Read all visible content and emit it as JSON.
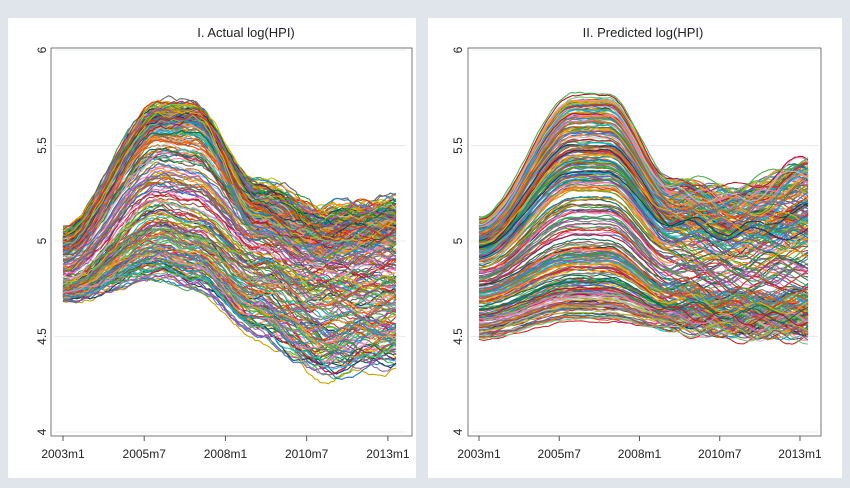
{
  "figure": {
    "background_color": "#dfe5ea"
  },
  "chart_data": [
    {
      "type": "line",
      "title": "I. Actual log(HPI)",
      "xlabel": "",
      "ylabel": "",
      "x_ticks": [
        "2003m1",
        "2005m7",
        "2008m1",
        "2010m7",
        "2013m1"
      ],
      "x_tick_months": [
        0,
        30,
        60,
        90,
        120
      ],
      "y_ticks": [
        "4",
        "4.5",
        "5",
        "5.5",
        "6"
      ],
      "ylim": [
        4,
        6
      ],
      "xlim": [
        "2003m1",
        "2013m4"
      ],
      "grid": true,
      "legend": "none",
      "n_series": 300,
      "representative_series": [
        {
          "x": [
            "2003m1",
            "2006m1",
            "2007m1",
            "2009m1",
            "2011m1",
            "2013m3"
          ],
          "y": [
            4.95,
            5.6,
            5.62,
            5.05,
            4.95,
            5.0
          ]
        },
        {
          "x": [
            "2003m1",
            "2006m1",
            "2007m1",
            "2009m1",
            "2011m1",
            "2013m3"
          ],
          "y": [
            5.05,
            5.7,
            5.7,
            5.3,
            5.15,
            5.2
          ]
        },
        {
          "x": [
            "2003m1",
            "2006m1",
            "2007m1",
            "2009m1",
            "2011m1",
            "2013m3"
          ],
          "y": [
            4.75,
            5.1,
            5.05,
            4.85,
            4.75,
            4.75
          ]
        },
        {
          "x": [
            "2003m1",
            "2006m1",
            "2007m1",
            "2009m1",
            "2011m1",
            "2013m3"
          ],
          "y": [
            4.7,
            4.8,
            4.75,
            4.5,
            4.3,
            4.35
          ]
        }
      ],
      "colors": [
        "#1f77b4",
        "#d62728",
        "#2ca02c",
        "#ff7f0e",
        "#9467bd",
        "#8c564b",
        "#e377c2",
        "#7f7f7f",
        "#bcbd22",
        "#17becf",
        "#1b3a5c",
        "#c8a400",
        "#0b6e4f",
        "#b2182b",
        "#4daf4a",
        "#984ea3",
        "#f781bf",
        "#a6761d",
        "#666666",
        "#e6ab02",
        "#2b8cbe",
        "#74c476",
        "#fd8d3c",
        "#756bb1",
        "#636363",
        "#de2d26",
        "#31a354",
        "#3182bd",
        "#e6550d",
        "#bdbdbd"
      ]
    },
    {
      "type": "line",
      "title": "II. Predicted log(HPI)",
      "xlabel": "",
      "ylabel": "",
      "x_ticks": [
        "2003m1",
        "2005m7",
        "2008m1",
        "2010m7",
        "2013m1"
      ],
      "x_tick_months": [
        0,
        30,
        60,
        90,
        120
      ],
      "y_ticks": [
        "4",
        "4.5",
        "5",
        "5.5",
        "6"
      ],
      "ylim": [
        4,
        6
      ],
      "xlim": [
        "2003m1",
        "2013m4"
      ],
      "grid": true,
      "legend": "none",
      "n_series": 300,
      "representative_series": [
        {
          "x": [
            "2003m1",
            "2006m1",
            "2007m1",
            "2009m1",
            "2011m1",
            "2013m3"
          ],
          "y": [
            4.95,
            5.3,
            5.3,
            5.05,
            5.0,
            5.0
          ]
        },
        {
          "x": [
            "2003m1",
            "2006m1",
            "2007m1",
            "2009m1",
            "2011m1",
            "2013m3"
          ],
          "y": [
            5.1,
            5.75,
            5.75,
            5.3,
            5.25,
            5.4
          ]
        },
        {
          "x": [
            "2003m1",
            "2006m1",
            "2007m1",
            "2009m1",
            "2011m1",
            "2013m3"
          ],
          "y": [
            4.75,
            4.95,
            4.95,
            4.75,
            4.7,
            4.7
          ]
        },
        {
          "x": [
            "2003m1",
            "2006m1",
            "2007m1",
            "2009m1",
            "2011m1",
            "2013m3"
          ],
          "y": [
            4.5,
            4.6,
            4.6,
            4.55,
            4.52,
            4.52
          ]
        }
      ],
      "colors": [
        "#1f77b4",
        "#d62728",
        "#2ca02c",
        "#ff7f0e",
        "#9467bd",
        "#8c564b",
        "#e377c2",
        "#7f7f7f",
        "#bcbd22",
        "#17becf",
        "#1b3a5c",
        "#c8a400",
        "#0b6e4f",
        "#b2182b",
        "#4daf4a",
        "#984ea3",
        "#f781bf",
        "#a6761d",
        "#666666",
        "#e6ab02",
        "#2b8cbe",
        "#74c476",
        "#fd8d3c",
        "#756bb1",
        "#636363",
        "#de2d26",
        "#31a354",
        "#3182bd",
        "#e6550d",
        "#bdbdbd"
      ]
    }
  ]
}
